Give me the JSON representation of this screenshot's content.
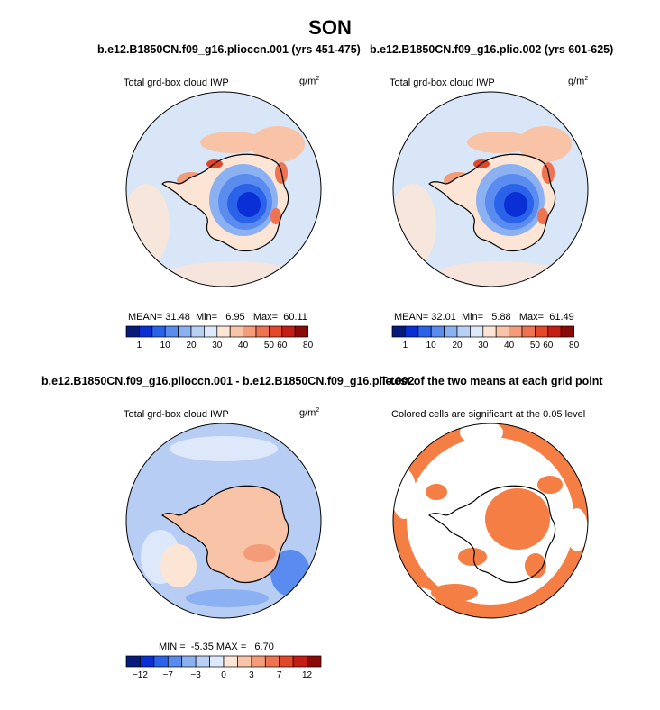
{
  "page_title": "SON",
  "panels": {
    "p1": {
      "title": "b.e12.B1850CN.f09_g16.plioccn.001 (yrs 451-475)",
      "subtitle": "Total grd-box cloud IWP",
      "units_base": "g/m",
      "units_exp": "2",
      "stats": {
        "mean_label": "MEAN=",
        "mean": "31.48",
        "min_label": "Min=",
        "min": "6.95",
        "max_label": "Max=",
        "max": "60.11"
      }
    },
    "p2": {
      "title": "b.e12.B1850CN.f09_g16.plio.002 (yrs 601-625)",
      "subtitle": "Total grd-box cloud IWP",
      "units_base": "g/m",
      "units_exp": "2",
      "stats": {
        "mean_label": "MEAN=",
        "mean": "32.01",
        "min_label": "Min=",
        "min": "5.88",
        "max_label": "Max=",
        "max": "61.49"
      }
    },
    "p3": {
      "title": "b.e12.B1850CN.f09_g16.plioccn.001 - b.e12.B1850CN.f09_g16.plio.002",
      "subtitle": "Total grd-box cloud IWP",
      "units_base": "g/m",
      "units_exp": "2",
      "stats": {
        "min_label": "MIN =",
        "min": "-5.35",
        "max_label": "MAX =",
        "max": "6.70"
      }
    },
    "p4": {
      "title": "T-test of the two means at each grid point",
      "subtitle": "Colored cells are significant at the 0.05 level"
    }
  },
  "colors": {
    "scale": [
      "#081a7a",
      "#0a2fd4",
      "#2a62ea",
      "#5a8cef",
      "#8cb1f2",
      "#b9d0f5",
      "#dde9fa",
      "#fde5d6",
      "#f8c3a6",
      "#f49c7a",
      "#ee7350",
      "#e2472a",
      "#c41d14",
      "#8a0a08"
    ],
    "significant": "#f47e43",
    "ocean_abs": "#d8e6f7",
    "land_abs": "#fde5d6",
    "ocean_diff": "#b7cdf3",
    "land_diff": "#f8c3a6"
  },
  "chart_data": [
    {
      "type": "heatmap",
      "title": "b.e12.B1850CN.f09_g16.plioccn.001 (yrs 451-475)",
      "variable": "Total grd-box cloud IWP",
      "units": "g/m^2",
      "projection": "south polar stereographic",
      "colorbar_levels": [
        1,
        5,
        10,
        15,
        20,
        25,
        30,
        35,
        40,
        45,
        50,
        60,
        70,
        80
      ],
      "colorbar_tick_labels": [
        "1",
        "10",
        "20",
        "30",
        "40",
        "50",
        "60",
        "80"
      ],
      "mean": 31.48,
      "min": 6.95,
      "max": 60.11
    },
    {
      "type": "heatmap",
      "title": "b.e12.B1850CN.f09_g16.plio.002 (yrs 601-625)",
      "variable": "Total grd-box cloud IWP",
      "units": "g/m^2",
      "projection": "south polar stereographic",
      "colorbar_levels": [
        1,
        5,
        10,
        15,
        20,
        25,
        30,
        35,
        40,
        45,
        50,
        60,
        70,
        80
      ],
      "colorbar_tick_labels": [
        "1",
        "10",
        "20",
        "30",
        "40",
        "50",
        "60",
        "80"
      ],
      "mean": 32.01,
      "min": 5.88,
      "max": 61.49
    },
    {
      "type": "heatmap",
      "title": "b.e12.B1850CN.f09_g16.plioccn.001 - b.e12.B1850CN.f09_g16.plio.002",
      "variable": "Total grd-box cloud IWP",
      "units": "g/m^2",
      "projection": "south polar stereographic",
      "colorbar_levels": [
        -12,
        -10,
        -7,
        -5,
        -3,
        -1,
        0,
        1,
        3,
        5,
        7,
        10,
        12
      ],
      "colorbar_tick_labels": [
        "-12",
        "-7",
        "-3",
        "0",
        "3",
        "7",
        "12"
      ],
      "min": -5.35,
      "max": 6.7
    },
    {
      "type": "heatmap",
      "title": "T-test of the two means at each grid point",
      "annotation": "Colored cells are significant at the 0.05 level",
      "significance_level": 0.05
    }
  ]
}
